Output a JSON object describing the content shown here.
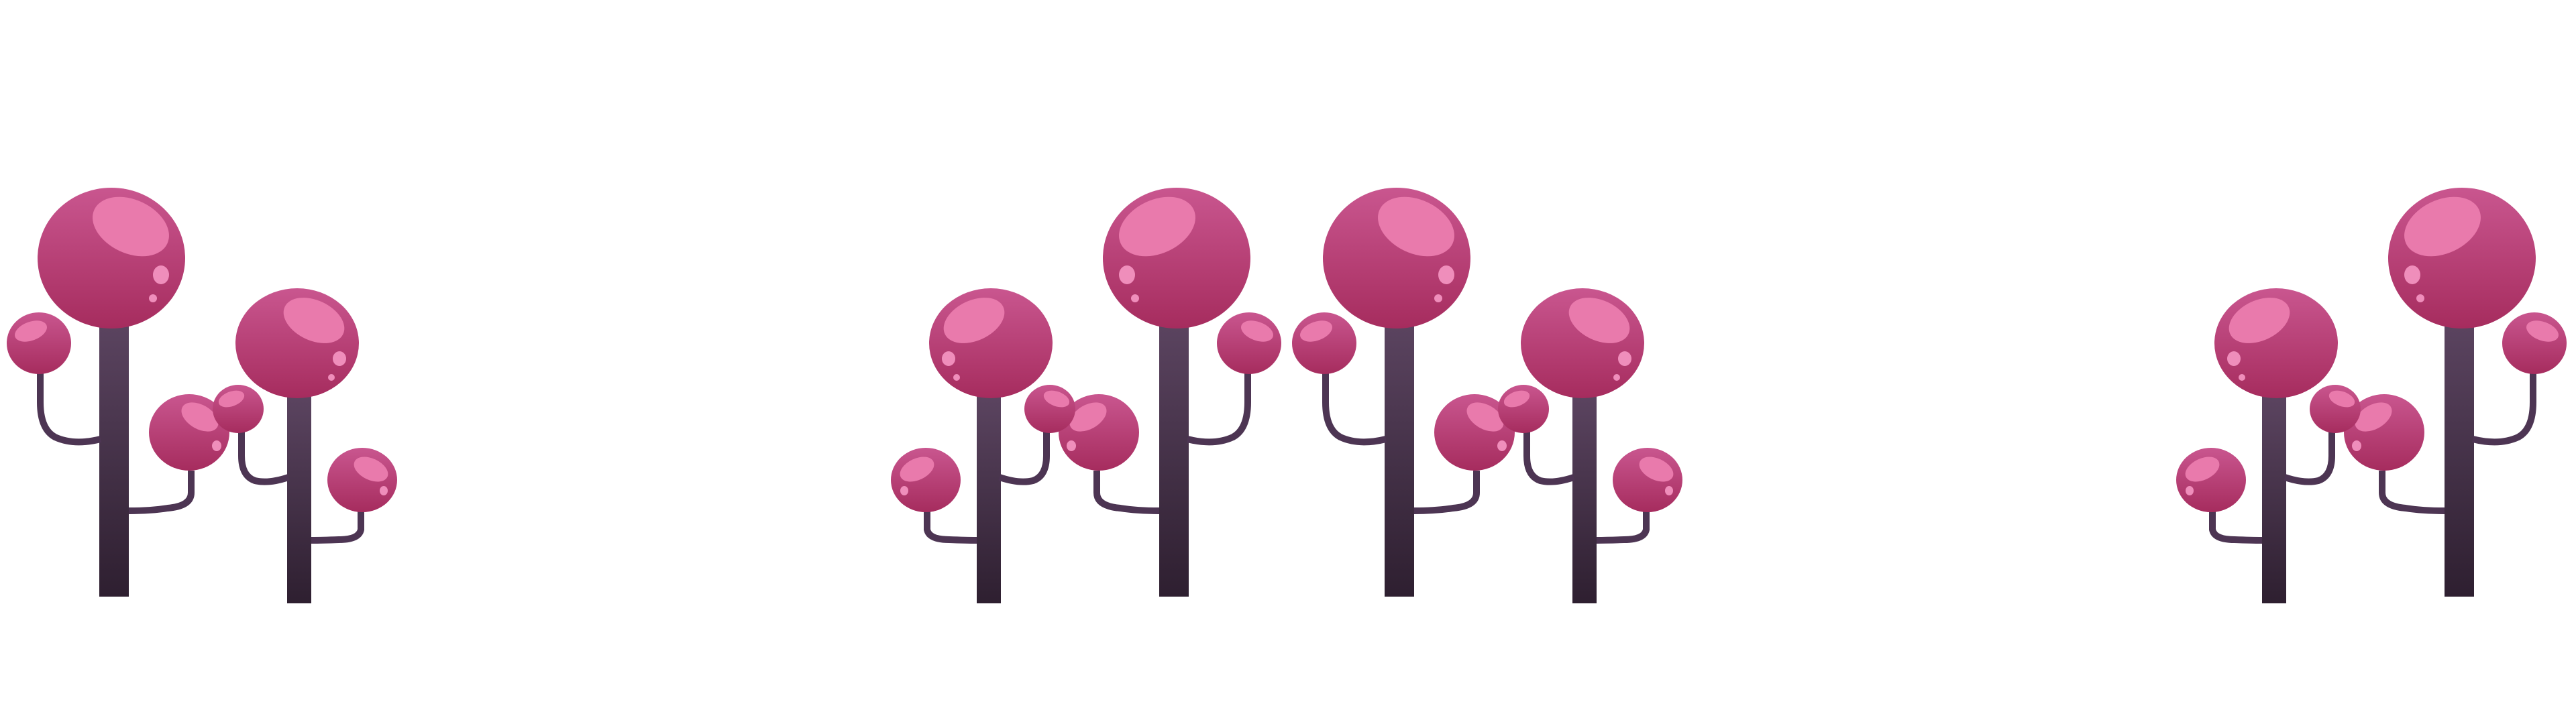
{
  "scene": {
    "background": "#ffffff",
    "colors": {
      "cap_top": "#c9568f",
      "cap_bottom": "#a62c5e",
      "cap_highlight": "#e97aac",
      "cap_dot": "#ef8ebb",
      "stem_top": "#5b4460",
      "stem_bottom": "#2e1f30",
      "branch": "#4d3553"
    },
    "tree_groups": [
      {
        "name": "tree-group-1",
        "mirrored": false
      },
      {
        "name": "tree-group-2",
        "mirrored": true
      },
      {
        "name": "tree-group-3",
        "mirrored": false
      },
      {
        "name": "tree-group-4",
        "mirrored": true
      }
    ]
  }
}
